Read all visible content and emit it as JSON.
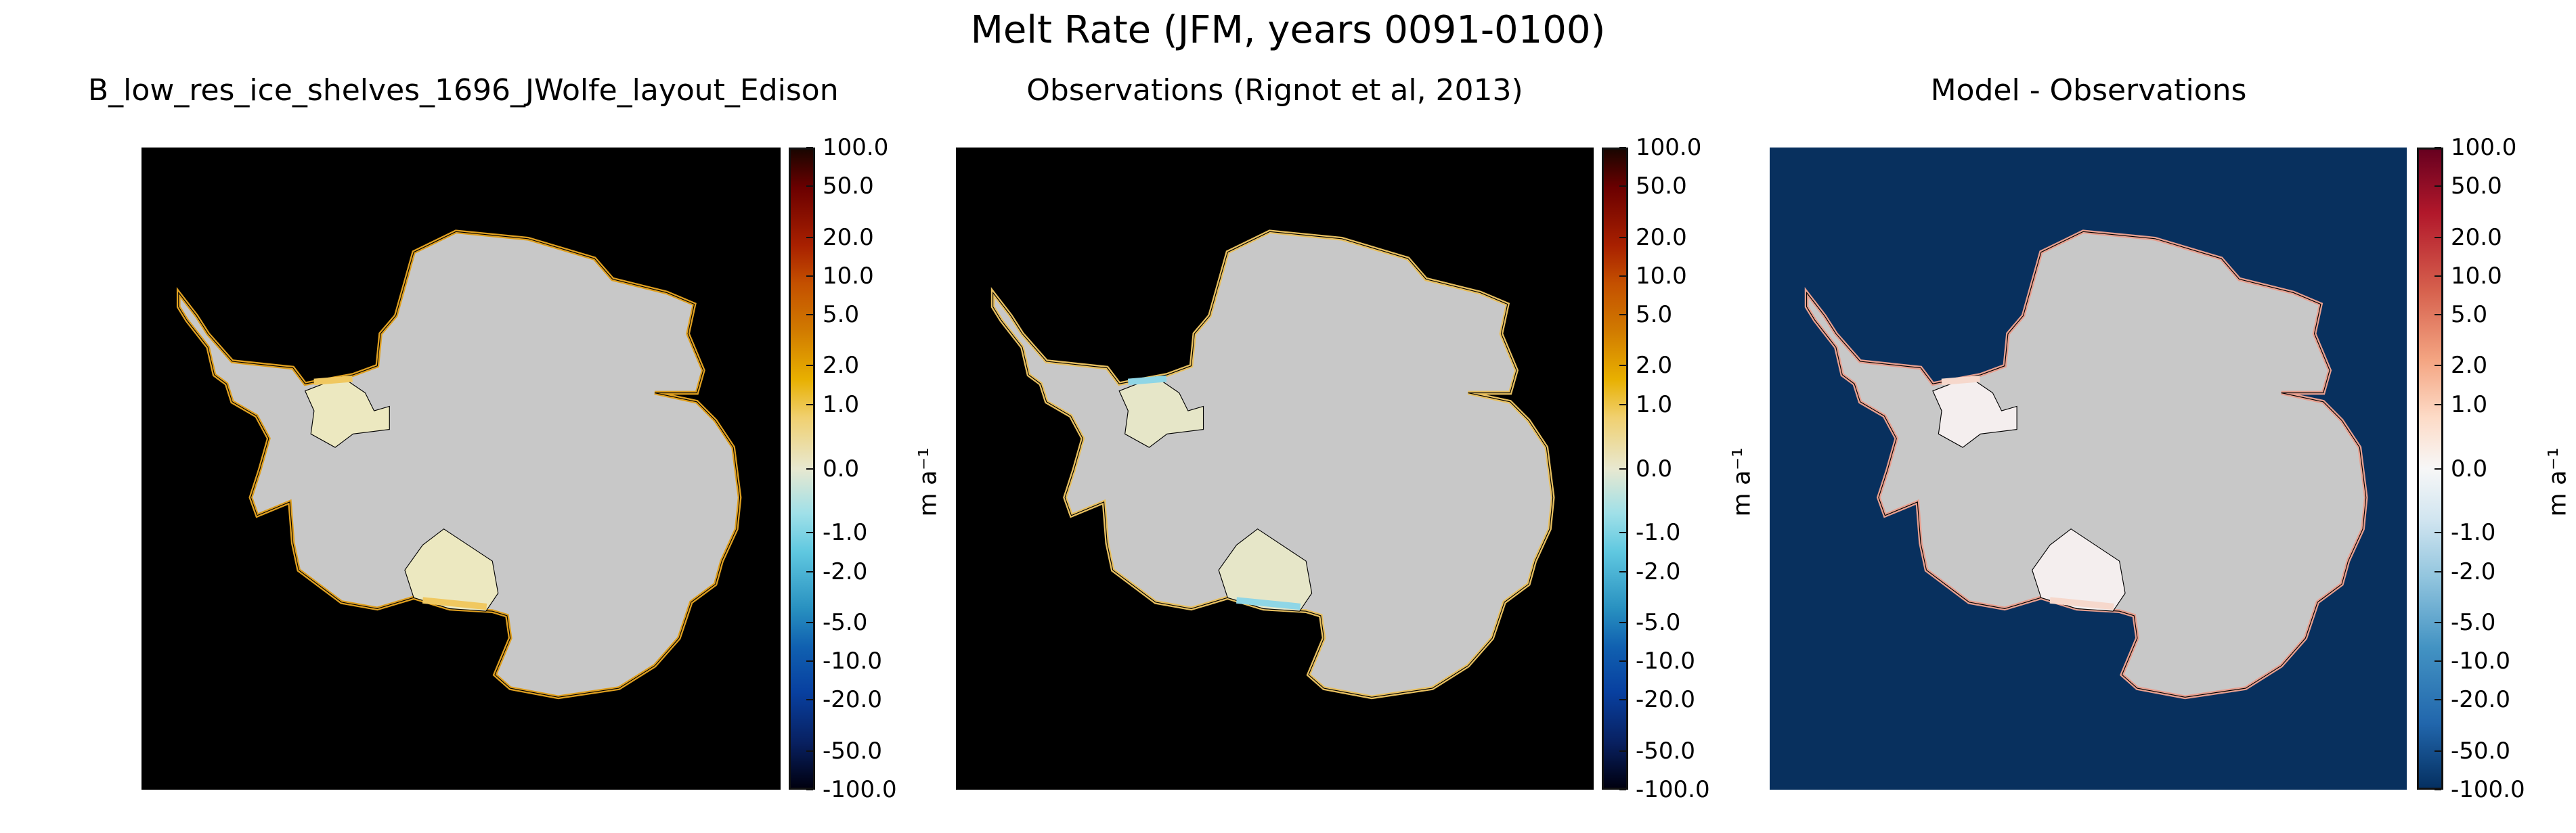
{
  "chart_data": {
    "type": "heatmap",
    "title": "Melt Rate (JFM, years 0091-0100)",
    "panels": [
      {
        "title": "B_low_res_ice_shelves_1696_JWolfe_layout_Edison",
        "colorbar_label": "m a⁻¹",
        "colormap": "ice-fire (blue-black-orange)",
        "background": "#000000"
      },
      {
        "title": "Observations (Rignot et al, 2013)",
        "colorbar_label": "m a⁻¹",
        "colormap": "ice-fire (blue-black-orange)",
        "background": "#000000"
      },
      {
        "title": "Model - Observations",
        "colorbar_label": "m a⁻¹",
        "colormap": "RdBu_r",
        "background": "#08305e"
      }
    ],
    "colorbar_ticks": [
      "100.0",
      "50.0",
      "20.0",
      "10.0",
      "5.0",
      "2.0",
      "1.0",
      "0.0",
      "-1.0",
      "-2.0",
      "-5.0",
      "-10.0",
      "-20.0",
      "-50.0",
      "-100.0"
    ],
    "colorbar_scale": "symlog",
    "vlim": [
      -100,
      100
    ]
  },
  "colors": {
    "land": "#c8c8c8",
    "ocean_panel3": "#08305e"
  }
}
